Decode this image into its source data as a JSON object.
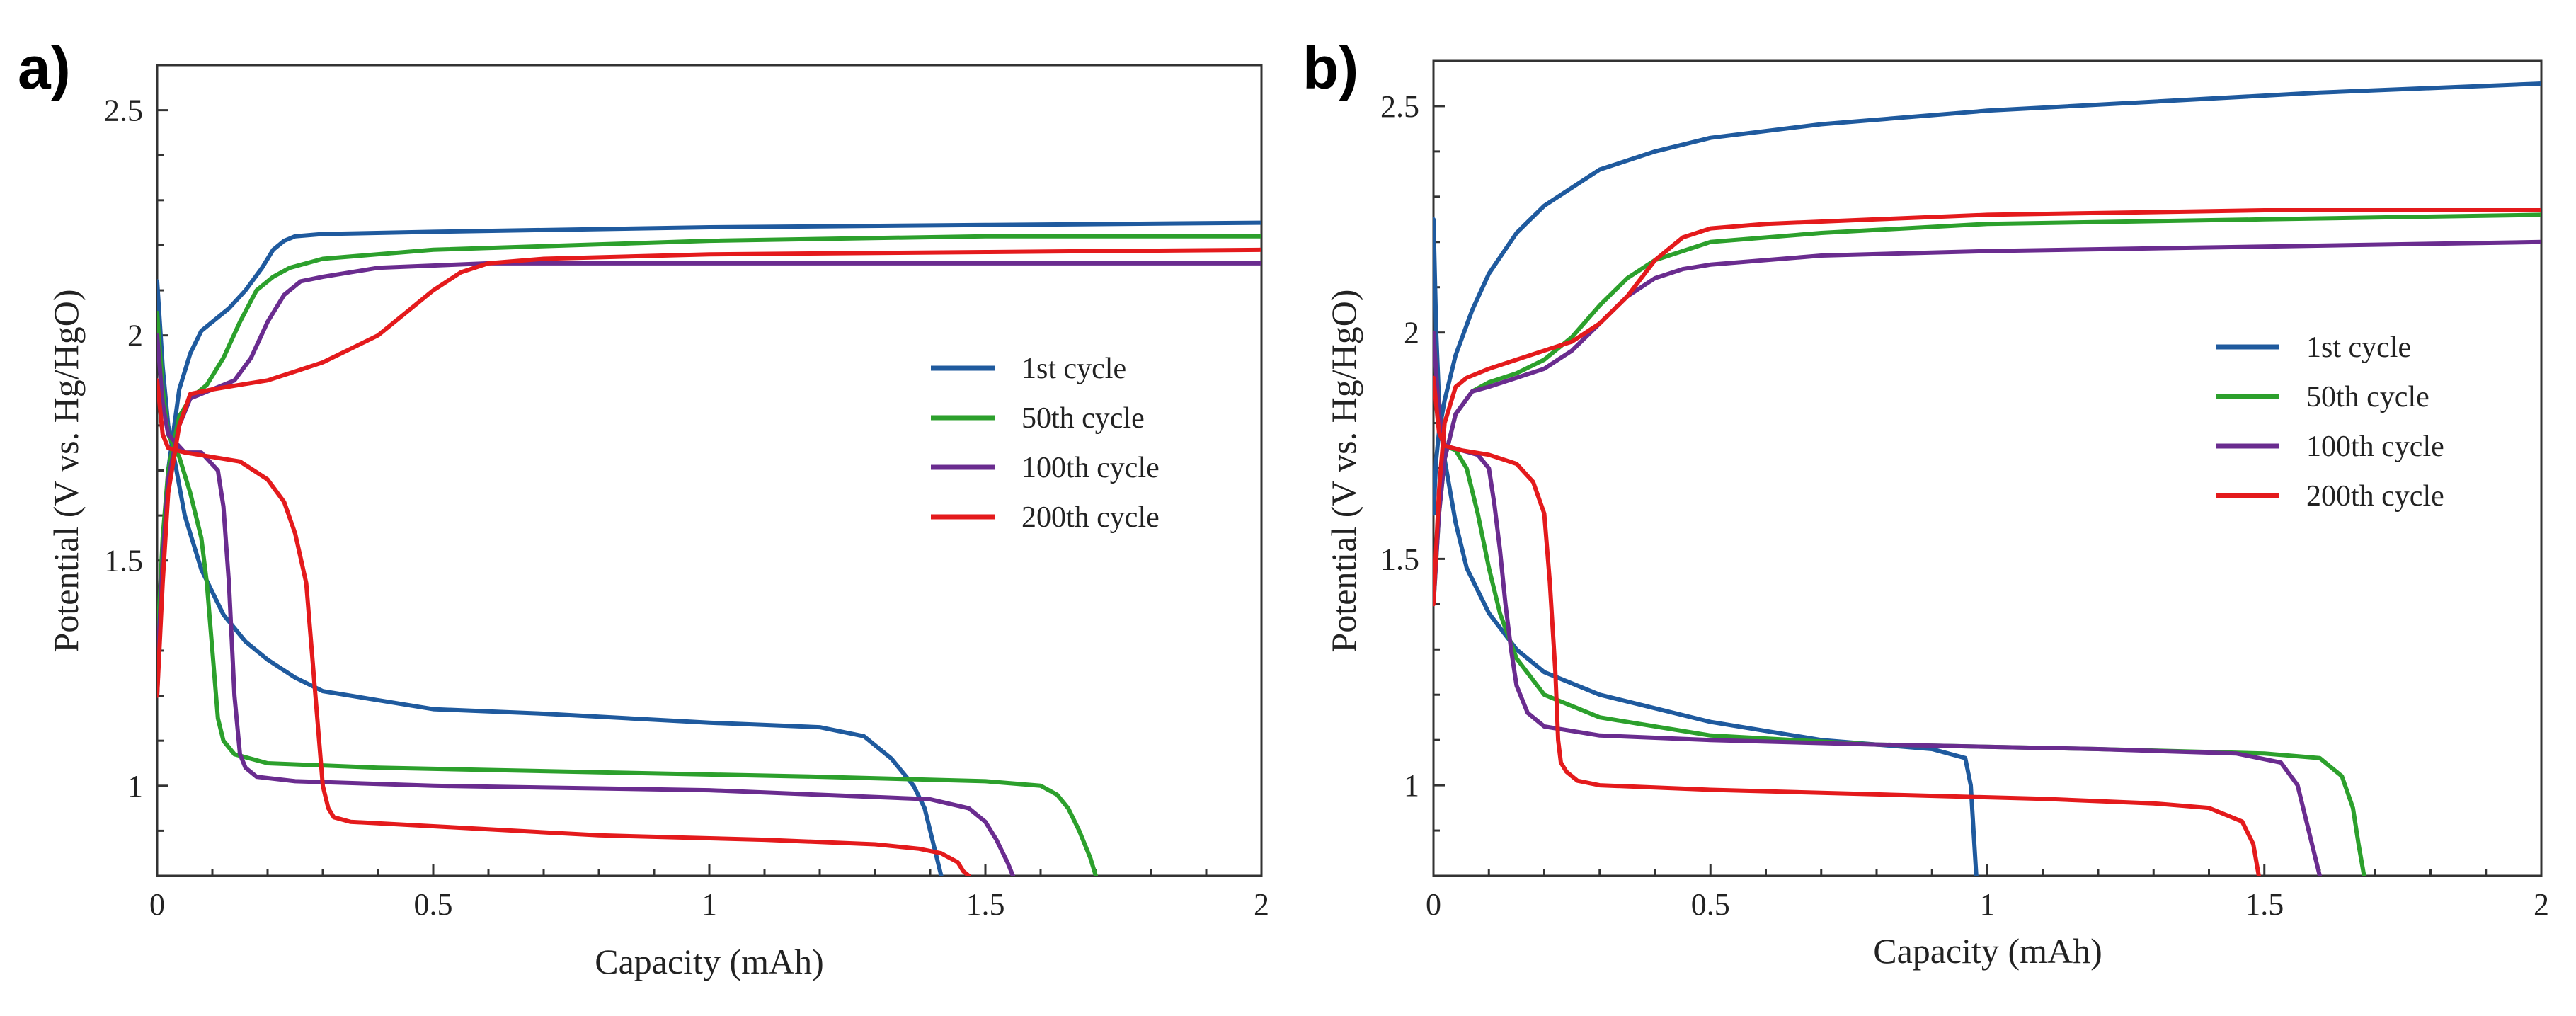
{
  "chart_data": [
    {
      "panel_label": "a)",
      "type": "line",
      "xlabel": "Capacity (mAh)",
      "ylabel": "Potential (V vs. Hg/HgO)",
      "xlim": [
        0,
        2
      ],
      "ylim": [
        0.8,
        2.6
      ],
      "xticks": [
        0,
        0.5,
        1,
        1.5,
        2
      ],
      "xtick_labels": [
        "0",
        "0.5",
        "1",
        "1.5",
        "2"
      ],
      "yticks": [
        1,
        1.5,
        2,
        2.5
      ],
      "ytick_labels": [
        "1",
        "1.5",
        "2",
        "2.5"
      ],
      "grid": false,
      "legend_position": "center-right",
      "series": [
        {
          "name": "1st cycle",
          "color": "#1f5a9e",
          "charge": {
            "x": [
              0,
              0.01,
              0.02,
              0.04,
              0.06,
              0.08,
              0.1,
              0.13,
              0.16,
              0.19,
              0.21,
              0.23,
              0.25,
              0.3,
              0.5,
              1.0,
              1.5,
              2.0
            ],
            "y": [
              1.2,
              1.5,
              1.7,
              1.88,
              1.96,
              2.01,
              2.03,
              2.06,
              2.1,
              2.15,
              2.19,
              2.21,
              2.22,
              2.225,
              2.23,
              2.24,
              2.245,
              2.25
            ]
          },
          "discharge": {
            "x": [
              0,
              0.01,
              0.02,
              0.05,
              0.08,
              0.12,
              0.16,
              0.2,
              0.25,
              0.3,
              0.4,
              0.5,
              0.7,
              1.0,
              1.2,
              1.28,
              1.33,
              1.37,
              1.39,
              1.4,
              1.41,
              1.42
            ],
            "y": [
              2.12,
              1.93,
              1.8,
              1.6,
              1.48,
              1.38,
              1.32,
              1.28,
              1.24,
              1.21,
              1.19,
              1.17,
              1.16,
              1.14,
              1.13,
              1.11,
              1.06,
              1.0,
              0.95,
              0.9,
              0.85,
              0.8
            ]
          }
        },
        {
          "name": "50th cycle",
          "color": "#2ca02c",
          "charge": {
            "x": [
              0,
              0.01,
              0.02,
              0.04,
              0.06,
              0.09,
              0.12,
              0.15,
              0.18,
              0.21,
              0.24,
              0.3,
              0.5,
              1.0,
              1.5,
              2.0
            ],
            "y": [
              1.3,
              1.55,
              1.7,
              1.82,
              1.86,
              1.89,
              1.95,
              2.03,
              2.1,
              2.13,
              2.15,
              2.17,
              2.19,
              2.21,
              2.22,
              2.22
            ]
          },
          "discharge": {
            "x": [
              0,
              0.01,
              0.02,
              0.04,
              0.06,
              0.08,
              0.09,
              0.1,
              0.11,
              0.12,
              0.14,
              0.2,
              0.4,
              0.8,
              1.2,
              1.5,
              1.6,
              1.63,
              1.65,
              1.67,
              1.69,
              1.7
            ],
            "y": [
              2.05,
              1.88,
              1.78,
              1.73,
              1.65,
              1.55,
              1.45,
              1.3,
              1.15,
              1.1,
              1.07,
              1.05,
              1.04,
              1.03,
              1.02,
              1.01,
              1.0,
              0.98,
              0.95,
              0.9,
              0.84,
              0.8
            ]
          }
        },
        {
          "name": "100th cycle",
          "color": "#6a2c8f",
          "charge": {
            "x": [
              0,
              0.01,
              0.02,
              0.04,
              0.06,
              0.1,
              0.14,
              0.17,
              0.2,
              0.23,
              0.26,
              0.3,
              0.4,
              0.6,
              1.0,
              1.5,
              2.0
            ],
            "y": [
              1.25,
              1.5,
              1.68,
              1.8,
              1.86,
              1.88,
              1.9,
              1.95,
              2.03,
              2.09,
              2.12,
              2.13,
              2.15,
              2.16,
              2.16,
              2.16,
              2.16
            ]
          },
          "discharge": {
            "x": [
              0,
              0.01,
              0.02,
              0.05,
              0.08,
              0.11,
              0.12,
              0.13,
              0.14,
              0.15,
              0.16,
              0.18,
              0.25,
              0.5,
              1.0,
              1.4,
              1.47,
              1.5,
              1.52,
              1.54,
              1.55
            ],
            "y": [
              2.0,
              1.85,
              1.78,
              1.74,
              1.74,
              1.7,
              1.62,
              1.45,
              1.2,
              1.07,
              1.04,
              1.02,
              1.01,
              1.0,
              0.99,
              0.97,
              0.95,
              0.92,
              0.88,
              0.83,
              0.8
            ]
          }
        },
        {
          "name": "200th cycle",
          "color": "#e41a1c",
          "charge": {
            "x": [
              0,
              0.01,
              0.02,
              0.04,
              0.06,
              0.1,
              0.15,
              0.2,
              0.25,
              0.3,
              0.35,
              0.4,
              0.45,
              0.5,
              0.55,
              0.6,
              0.7,
              1.0,
              1.5,
              2.0
            ],
            "y": [
              1.2,
              1.45,
              1.65,
              1.8,
              1.87,
              1.88,
              1.89,
              1.9,
              1.92,
              1.94,
              1.97,
              2.0,
              2.05,
              2.1,
              2.14,
              2.16,
              2.17,
              2.18,
              2.185,
              2.19
            ]
          },
          "discharge": {
            "x": [
              0,
              0.01,
              0.02,
              0.05,
              0.1,
              0.15,
              0.2,
              0.23,
              0.25,
              0.27,
              0.28,
              0.29,
              0.3,
              0.31,
              0.32,
              0.35,
              0.5,
              0.8,
              1.1,
              1.3,
              1.38,
              1.42,
              1.45,
              1.46,
              1.47
            ],
            "y": [
              1.9,
              1.78,
              1.75,
              1.74,
              1.73,
              1.72,
              1.68,
              1.63,
              1.56,
              1.45,
              1.3,
              1.15,
              1.0,
              0.95,
              0.93,
              0.92,
              0.91,
              0.89,
              0.88,
              0.87,
              0.86,
              0.85,
              0.83,
              0.81,
              0.8
            ]
          }
        }
      ]
    },
    {
      "panel_label": "b)",
      "type": "line",
      "xlabel": "Capacity (mAh)",
      "ylabel": "Potential (V vs. Hg/HgO)",
      "xlim": [
        0,
        2
      ],
      "ylim": [
        0.8,
        2.6
      ],
      "xticks": [
        0,
        0.5,
        1,
        1.5,
        2
      ],
      "xtick_labels": [
        "0",
        "0.5",
        "1",
        "1.5",
        "2"
      ],
      "yticks": [
        1,
        1.5,
        2,
        2.5
      ],
      "ytick_labels": [
        "1",
        "1.5",
        "2",
        "2.5"
      ],
      "grid": false,
      "legend_position": "center-right",
      "series": [
        {
          "name": "1st cycle",
          "color": "#1f5a9e",
          "charge": {
            "x": [
              0,
              0.005,
              0.01,
              0.02,
              0.04,
              0.07,
              0.1,
              0.15,
              0.2,
              0.3,
              0.4,
              0.5,
              0.7,
              1.0,
              1.3,
              1.6,
              2.0
            ],
            "y": [
              1.6,
              1.72,
              1.78,
              1.85,
              1.95,
              2.05,
              2.13,
              2.22,
              2.28,
              2.36,
              2.4,
              2.43,
              2.46,
              2.49,
              2.51,
              2.53,
              2.55
            ]
          },
          "discharge": {
            "x": [
              0,
              0.005,
              0.01,
              0.02,
              0.04,
              0.06,
              0.1,
              0.15,
              0.2,
              0.3,
              0.5,
              0.7,
              0.9,
              0.96,
              0.97,
              0.975,
              0.98
            ],
            "y": [
              2.25,
              2.0,
              1.85,
              1.72,
              1.58,
              1.48,
              1.38,
              1.3,
              1.25,
              1.2,
              1.14,
              1.1,
              1.08,
              1.06,
              1.0,
              0.9,
              0.8
            ]
          }
        },
        {
          "name": "50th cycle",
          "color": "#2ca02c",
          "charge": {
            "x": [
              0,
              0.01,
              0.02,
              0.04,
              0.07,
              0.1,
              0.15,
              0.2,
              0.25,
              0.3,
              0.35,
              0.4,
              0.45,
              0.5,
              0.7,
              1.0,
              1.5,
              2.0
            ],
            "y": [
              1.4,
              1.6,
              1.72,
              1.82,
              1.87,
              1.89,
              1.91,
              1.94,
              1.99,
              2.06,
              2.12,
              2.16,
              2.18,
              2.2,
              2.22,
              2.24,
              2.25,
              2.26
            ]
          },
          "discharge": {
            "x": [
              0,
              0.01,
              0.02,
              0.04,
              0.06,
              0.08,
              0.1,
              0.12,
              0.15,
              0.2,
              0.3,
              0.5,
              0.8,
              1.2,
              1.5,
              1.6,
              1.64,
              1.66,
              1.67,
              1.68
            ],
            "y": [
              2.0,
              1.82,
              1.75,
              1.74,
              1.7,
              1.6,
              1.48,
              1.38,
              1.28,
              1.2,
              1.15,
              1.11,
              1.09,
              1.08,
              1.07,
              1.06,
              1.02,
              0.95,
              0.87,
              0.8
            ]
          }
        },
        {
          "name": "100th cycle",
          "color": "#6a2c8f",
          "charge": {
            "x": [
              0,
              0.01,
              0.02,
              0.04,
              0.07,
              0.1,
              0.15,
              0.2,
              0.25,
              0.3,
              0.35,
              0.4,
              0.45,
              0.5,
              0.7,
              1.0,
              1.5,
              2.0
            ],
            "y": [
              1.4,
              1.6,
              1.72,
              1.82,
              1.87,
              1.88,
              1.9,
              1.92,
              1.96,
              2.02,
              2.08,
              2.12,
              2.14,
              2.15,
              2.17,
              2.18,
              2.19,
              2.2
            ]
          },
          "discharge": {
            "x": [
              0,
              0.01,
              0.02,
              0.05,
              0.08,
              0.1,
              0.11,
              0.12,
              0.13,
              0.14,
              0.15,
              0.17,
              0.2,
              0.3,
              0.5,
              0.8,
              1.2,
              1.45,
              1.53,
              1.56,
              1.58,
              1.6
            ],
            "y": [
              2.0,
              1.82,
              1.75,
              1.74,
              1.73,
              1.7,
              1.62,
              1.52,
              1.4,
              1.3,
              1.22,
              1.16,
              1.13,
              1.11,
              1.1,
              1.09,
              1.08,
              1.07,
              1.05,
              1.0,
              0.9,
              0.8
            ]
          }
        },
        {
          "name": "200th cycle",
          "color": "#e41a1c",
          "charge": {
            "x": [
              0,
              0.01,
              0.02,
              0.04,
              0.06,
              0.1,
              0.15,
              0.2,
              0.25,
              0.3,
              0.35,
              0.4,
              0.45,
              0.5,
              0.6,
              0.8,
              1.0,
              1.5,
              2.0
            ],
            "y": [
              1.4,
              1.65,
              1.8,
              1.88,
              1.9,
              1.92,
              1.94,
              1.96,
              1.98,
              2.02,
              2.08,
              2.16,
              2.21,
              2.23,
              2.24,
              2.25,
              2.26,
              2.27,
              2.27
            ]
          },
          "discharge": {
            "x": [
              0,
              0.01,
              0.02,
              0.05,
              0.1,
              0.15,
              0.18,
              0.2,
              0.21,
              0.22,
              0.225,
              0.23,
              0.24,
              0.26,
              0.3,
              0.5,
              0.8,
              1.1,
              1.3,
              1.4,
              1.46,
              1.48,
              1.49
            ],
            "y": [
              1.9,
              1.78,
              1.75,
              1.74,
              1.73,
              1.71,
              1.67,
              1.6,
              1.45,
              1.25,
              1.1,
              1.05,
              1.03,
              1.01,
              1.0,
              0.99,
              0.98,
              0.97,
              0.96,
              0.95,
              0.92,
              0.87,
              0.8
            ]
          }
        }
      ]
    }
  ]
}
